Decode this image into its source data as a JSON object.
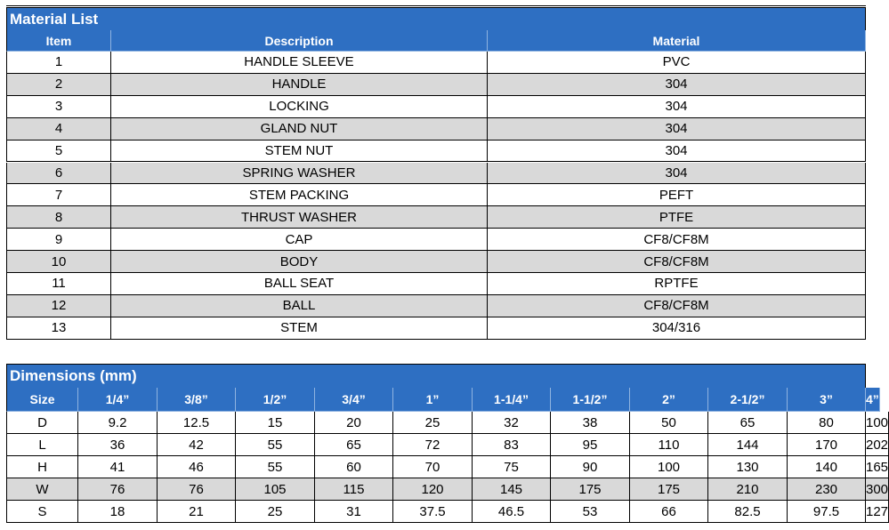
{
  "material_list": {
    "title": "Material List",
    "columns": [
      "Item",
      "Description",
      "Material"
    ],
    "rows": [
      [
        "1",
        "HANDLE SLEEVE",
        "PVC"
      ],
      [
        "2",
        "HANDLE",
        "304"
      ],
      [
        "3",
        "LOCKING",
        "304"
      ],
      [
        "4",
        "GLAND NUT",
        "304"
      ],
      [
        "5",
        "STEM NUT",
        "304"
      ],
      [
        "6",
        "SPRING WASHER",
        "304"
      ],
      [
        "7",
        "STEM PACKING",
        "PEFT"
      ],
      [
        "8",
        "THRUST WASHER",
        "PTFE"
      ],
      [
        "9",
        "CAP",
        "CF8/CF8M"
      ],
      [
        "10",
        "BODY",
        "CF8/CF8M"
      ],
      [
        "11",
        "BALL SEAT",
        "RPTFE"
      ],
      [
        "12",
        "BALL",
        "CF8/CF8M"
      ],
      [
        "13",
        "STEM",
        "304/316"
      ]
    ]
  },
  "dimensions": {
    "title": "Dimensions (mm)",
    "columns": [
      "Size",
      "1/4”",
      "3/8”",
      "1/2”",
      "3/4”",
      "1”",
      "1-1/4”",
      "1-1/2”",
      "2”",
      "2-1/2”",
      "3”",
      "4”"
    ],
    "rows": [
      [
        "D",
        "9.2",
        "12.5",
        "15",
        "20",
        "25",
        "32",
        "38",
        "50",
        "65",
        "80",
        "100"
      ],
      [
        "L",
        "36",
        "42",
        "55",
        "65",
        "72",
        "83",
        "95",
        "110",
        "144",
        "170",
        "202"
      ],
      [
        "H",
        "41",
        "46",
        "55",
        "60",
        "70",
        "75",
        "90",
        "100",
        "130",
        "140",
        "165"
      ],
      [
        "W",
        "76",
        "76",
        "105",
        "115",
        "120",
        "145",
        "175",
        "175",
        "210",
        "230",
        "300"
      ],
      [
        "S",
        "18",
        "21",
        "25",
        "31",
        "37.5",
        "46.5",
        "53",
        "66",
        "82.5",
        "97.5",
        "127"
      ]
    ]
  }
}
